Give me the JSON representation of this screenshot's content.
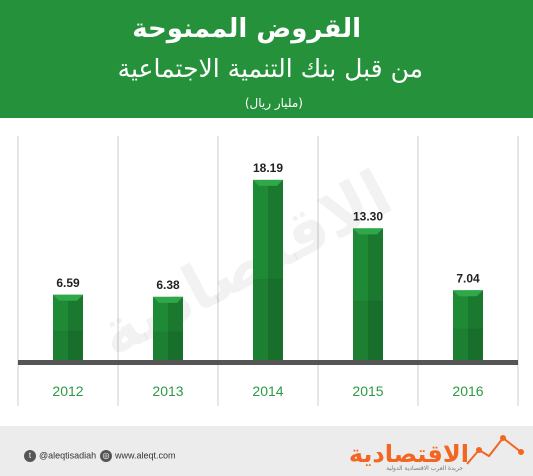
{
  "header": {
    "title": "القروض الممنوحة",
    "subtitle": "من قبل بنك التنمية الاجتماعية",
    "unit": "(مليار ريال)"
  },
  "footer": {
    "twitter": "@aleqtisadiah",
    "website": "www.aleqt.com",
    "logo": "الاقتصادية",
    "logo_tagline": "جريدة العرب الاقتصادية الدولية"
  },
  "watermark": "الاقتصادية",
  "colors": {
    "header_bg": "#26913b",
    "bar": "#1f8a36",
    "bar_top": "#2fa84a",
    "year_text": "#2e9a43",
    "value_text": "#222222",
    "logo": "#f26522"
  },
  "chart_data": {
    "type": "bar",
    "categories": [
      "2012",
      "2013",
      "2014",
      "2015",
      "2016"
    ],
    "values": [
      6.59,
      6.38,
      18.19,
      13.3,
      7.04
    ],
    "value_labels": [
      "6.59",
      "6.38",
      "18.19",
      "13.30",
      "7.04"
    ],
    "title": "القروض الممنوحة",
    "subtitle": "من قبل بنك التنمية الاجتماعية",
    "ylabel": "(مليار ريال)",
    "ylim": [
      0,
      20
    ],
    "grid": "vertical separators"
  }
}
